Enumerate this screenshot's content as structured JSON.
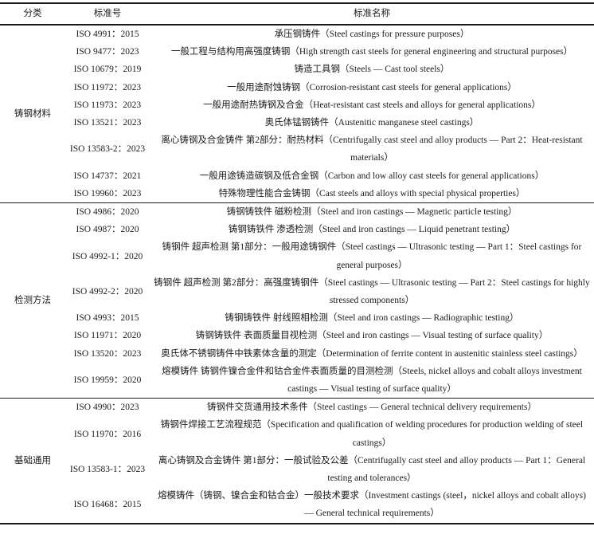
{
  "colors": {
    "text": "#1b1b1b",
    "rule": "#1a1a1a",
    "background": "#ffffff"
  },
  "table": {
    "headers": {
      "category": "分类",
      "number": "标准号",
      "name": "标准名称"
    },
    "sections": [
      {
        "category": "铸钢材料",
        "rows": [
          {
            "number": "ISO 4991：2015",
            "name": "承压钢铸件（Steel castings for pressure purposes）"
          },
          {
            "number": "ISO 9477：2023",
            "name": "一般工程与结构用高强度铸钢（High strength cast steels for general engineering and structural purposes）"
          },
          {
            "number": "ISO 10679：2019",
            "name": "铸造工具钢（Steels — Cast tool steels）"
          },
          {
            "number": "ISO 11972：2023",
            "name": "一般用途耐蚀铸钢（Corrosion-resistant cast steels for general applications）"
          },
          {
            "number": "ISO 11973：2023",
            "name": "一般用途耐热铸钢及合金（Heat-resistant cast steels and alloys for general applications）"
          },
          {
            "number": "ISO 13521：2023",
            "name": "奥氏体锰钢铸件（Austenitic manganese steel castings）"
          },
          {
            "number": "ISO 13583-2：2023",
            "name": "离心铸钢及合金铸件 第2部分：耐热材料（Centrifugally cast steel and alloy products — Part 2：Heat-resistant materials）"
          },
          {
            "number": "ISO 14737：2021",
            "name": "一般用途铸造碳钢及低合金钢（Carbon and low alloy cast steels for general applications）"
          },
          {
            "number": "ISO 19960：2023",
            "name": "特殊物理性能合金铸钢（Cast steels and alloys with special physical properties）"
          }
        ]
      },
      {
        "category": "检测方法",
        "rows": [
          {
            "number": "ISO 4986：2020",
            "name": "铸钢铸铁件 磁粉检测（Steel and iron castings — Magnetic particle testing）"
          },
          {
            "number": "ISO 4987：2020",
            "name": "铸钢铸铁件 渗透检测（Steel and iron castings — Liquid penetrant testing）"
          },
          {
            "number": "ISO 4992-1：2020",
            "name": "铸钢件 超声检测 第1部分：一般用途铸钢件（Steel castings — Ultrasonic testing — Part 1：Steel castings for general purposes）"
          },
          {
            "number": "ISO 4992-2：2020",
            "name": "铸钢件 超声检测 第2部分：高强度铸钢件（Steel castings — Ultrasonic testing — Part 2：Steel castings for highly stressed components）"
          },
          {
            "number": "ISO 4993：2015",
            "name": "铸钢铸铁件 射线照相检测（Steel and iron castings — Radiographic testing）"
          },
          {
            "number": "ISO 11971：2020",
            "name": "铸钢铸铁件 表面质量目视检测（Steel and iron castings — Visual testing of surface quality）"
          },
          {
            "number": "ISO 13520：2023",
            "name": "奥氏体不锈钢铸件中铁素体含量的测定（Determination of ferrite content in austenitic stainless steel castings）"
          },
          {
            "number": "ISO 19959：2020",
            "name": "熔模铸件 铸钢件镍合金件和钴合金件表面质量的目测检测（Steels, nickel alloys and cobalt alloys investment castings — Visual testing of surface quality）"
          }
        ]
      },
      {
        "category": "基础通用",
        "rows": [
          {
            "number": "ISO 4990：2023",
            "name": "铸钢件交货通用技术条件（Steel castings — General technical delivery requirements）"
          },
          {
            "number": "ISO 11970：2016",
            "name": "铸钢件焊接工艺流程规范（Specification and qualification of welding procedures for production welding of steel castings）"
          },
          {
            "number": "ISO 13583-1：2023",
            "name": "离心铸钢及合金铸件 第1部分：一般试验及公差（Centrifugally cast steel and alloy products — Part 1：General testing and tolerances）"
          },
          {
            "number": "ISO 16468：2015",
            "name": "熔模铸件（铸钢、镍合金和钴合金）一般技术要求（Investment castings (steel，nickel alloys and cobalt alloys) — General technical requirements）"
          }
        ]
      }
    ]
  }
}
